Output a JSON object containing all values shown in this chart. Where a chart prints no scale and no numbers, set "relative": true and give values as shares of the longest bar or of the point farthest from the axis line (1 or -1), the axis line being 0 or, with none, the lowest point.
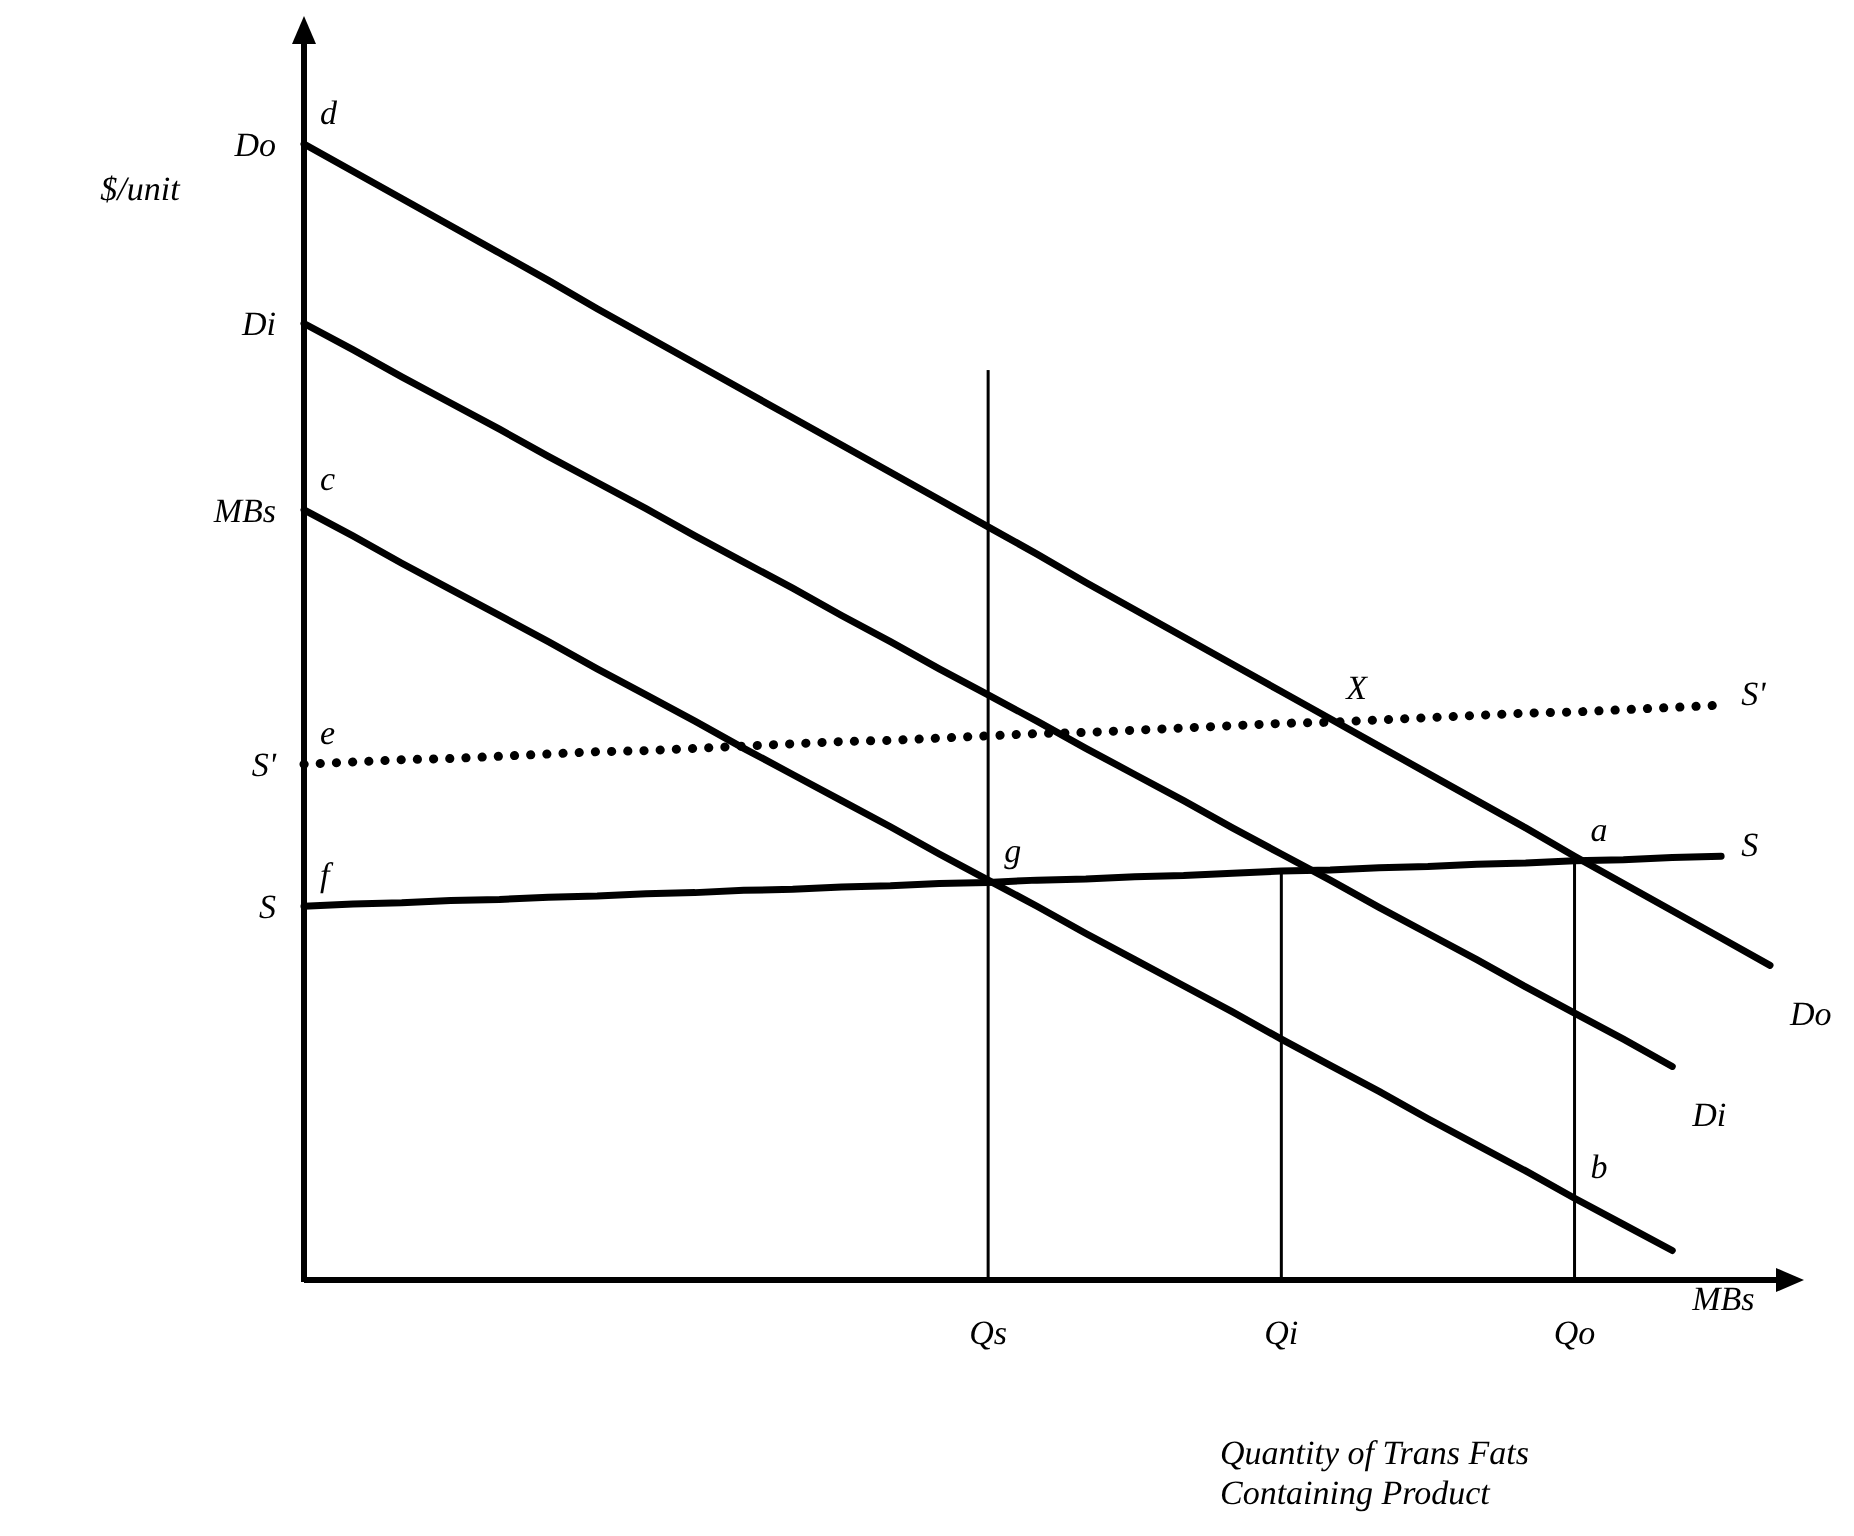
{
  "chart_data": {
    "type": "line",
    "relative": true,
    "ylabel": "$/unit",
    "xlabel": "Quantity of Trans Fats Containing Product",
    "marker": "none",
    "line_style": "solid",
    "categories": [
      null,
      null,
      null,
      null,
      null,
      null,
      null,
      null,
      null,
      null,
      null,
      null,
      null,
      null,
      "Qs",
      null,
      null,
      null,
      null,
      null,
      "Qi",
      null,
      null,
      null,
      null,
      null,
      "Qo",
      null,
      null,
      null,
      null
    ],
    "series": [
      {
        "name": "Do",
        "color": "#000000",
        "values": [
          1.0,
          0.976,
          0.952,
          0.928,
          0.904,
          0.88,
          0.855,
          0.831,
          0.807,
          0.783,
          0.759,
          0.735,
          0.711,
          0.687,
          0.663,
          0.639,
          0.614,
          0.59,
          0.566,
          0.542,
          0.518,
          0.494,
          0.47,
          0.446,
          0.422,
          0.398,
          0.373,
          0.349,
          0.325,
          0.301,
          0.277
        ]
      },
      {
        "name": "Di",
        "color": "#000000",
        "values": [
          0.842,
          0.819,
          0.795,
          0.772,
          0.749,
          0.725,
          0.702,
          0.679,
          0.655,
          0.632,
          0.609,
          0.585,
          0.562,
          0.538,
          0.515,
          0.492,
          0.468,
          0.445,
          0.422,
          0.398,
          0.375,
          0.352,
          0.328,
          0.305,
          0.282,
          0.258,
          0.235,
          0.212,
          0.188,
          null,
          null
        ]
      },
      {
        "name": "MBs",
        "color": "#000000",
        "values": [
          0.678,
          0.655,
          0.631,
          0.608,
          0.585,
          0.562,
          0.538,
          0.515,
          0.492,
          0.468,
          0.445,
          0.422,
          0.399,
          0.375,
          0.352,
          0.329,
          0.305,
          0.282,
          0.259,
          0.236,
          0.212,
          0.189,
          0.166,
          0.142,
          0.119,
          0.096,
          0.072,
          0.049,
          0.026,
          null,
          null
        ]
      },
      {
        "name": "S'",
        "color": "#000000",
        "line_style": "dotted",
        "values": [
          0.454,
          0.456,
          0.458,
          0.459,
          0.461,
          0.463,
          0.465,
          0.466,
          0.468,
          0.47,
          0.472,
          0.474,
          0.475,
          0.477,
          0.479,
          0.481,
          0.482,
          0.484,
          0.486,
          0.488,
          0.49,
          0.491,
          0.493,
          0.495,
          0.497,
          0.499,
          0.5,
          0.502,
          0.504,
          0.506,
          null
        ]
      },
      {
        "name": "S",
        "color": "#000000",
        "values": [
          0.329,
          0.331,
          0.332,
          0.334,
          0.335,
          0.337,
          0.338,
          0.34,
          0.341,
          0.343,
          0.344,
          0.346,
          0.347,
          0.349,
          0.35,
          0.352,
          0.353,
          0.355,
          0.356,
          0.358,
          0.36,
          0.361,
          0.363,
          0.364,
          0.366,
          0.367,
          0.369,
          0.37,
          0.372,
          0.373,
          null
        ]
      },
      {
        "type": "bar",
        "color": "#000000",
        "values": [
          null,
          null,
          null,
          null,
          null,
          null,
          null,
          null,
          null,
          null,
          null,
          null,
          null,
          null,
          0.801,
          null,
          null,
          null,
          null,
          null,
          0.36,
          null,
          null,
          null,
          null,
          null,
          0.369,
          null,
          null,
          null,
          null
        ]
      }
    ],
    "annotations": [
      {
        "text": "d",
        "y": 1.0
      },
      {
        "text": "c",
        "y": 0.678
      },
      {
        "text": "e",
        "y": 0.454
      },
      {
        "text": "f",
        "y": 0.329
      },
      {
        "text": "g",
        "x": "Qs",
        "y": 0.35
      },
      {
        "text": "X",
        "y": 0.494
      },
      {
        "text": "a",
        "x": "Qo",
        "y": 0.369
      },
      {
        "text": "b",
        "x": "Qo",
        "y": 0.072
      }
    ]
  }
}
